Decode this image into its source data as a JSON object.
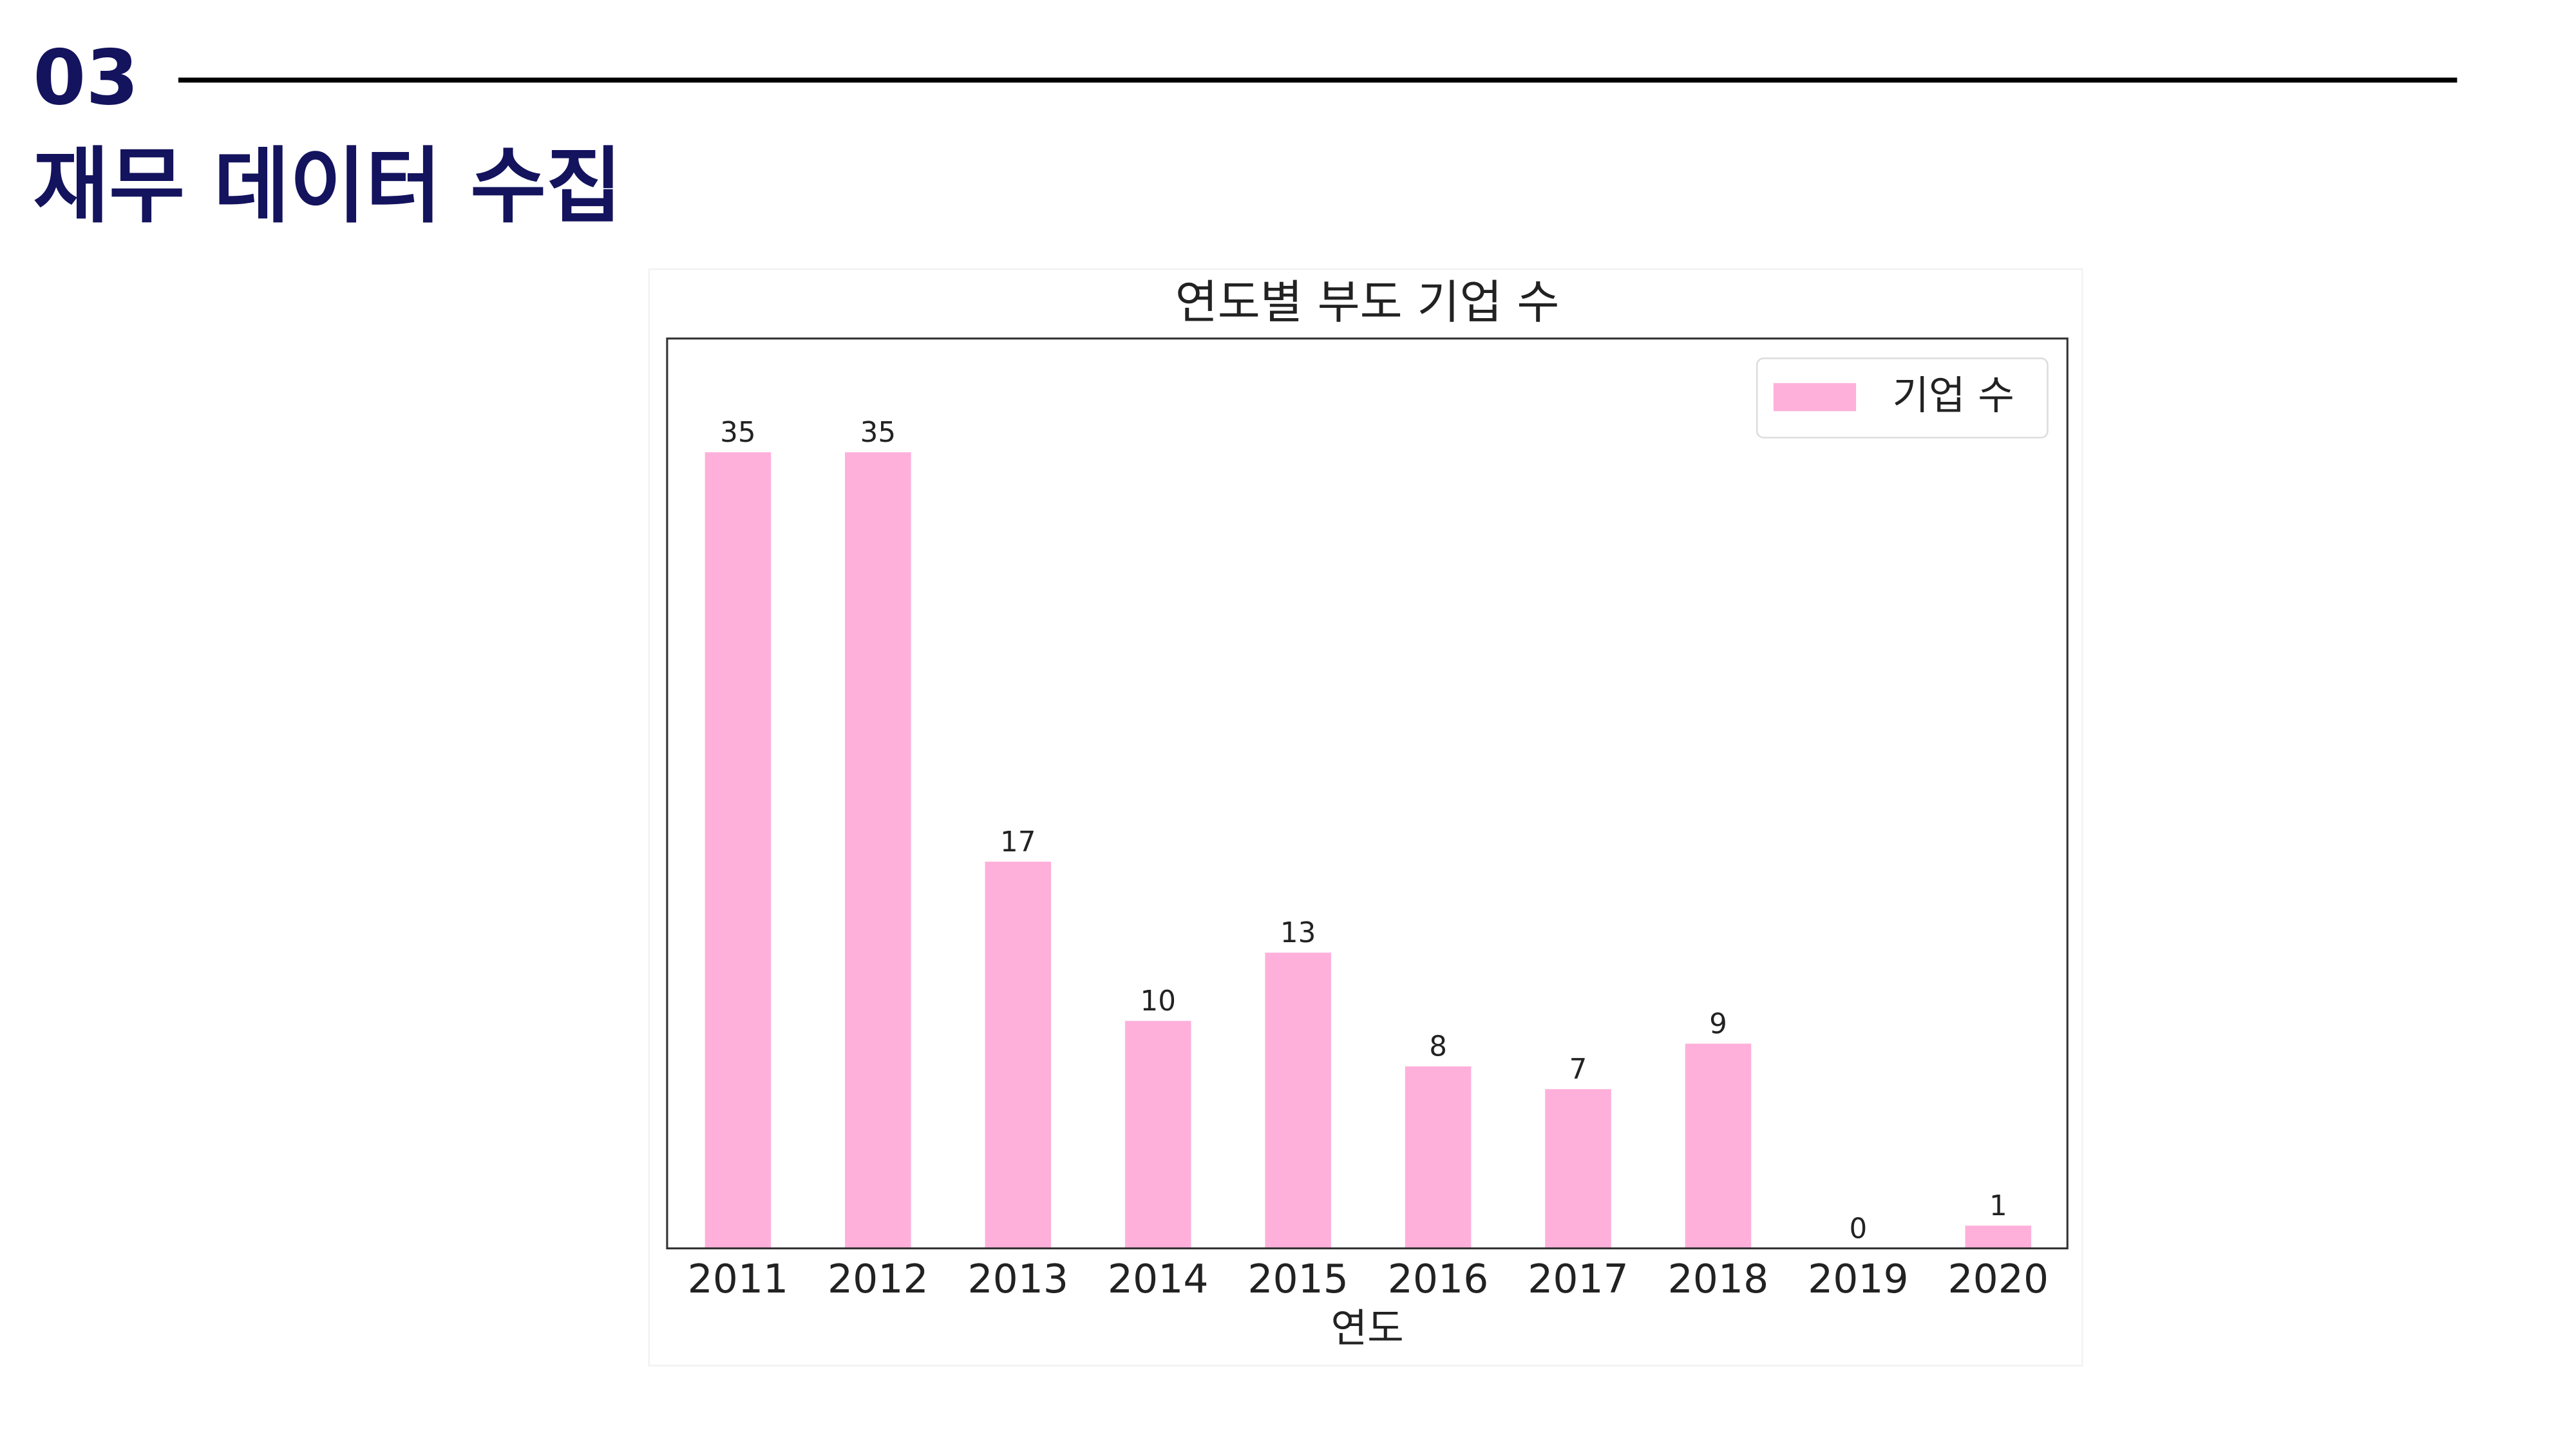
{
  "header": {
    "number": "03",
    "title": "재무 데이터 수집"
  },
  "chart_data": {
    "type": "bar",
    "title": "연도별 부도 기업 수",
    "x_label": "연도",
    "categories": [
      "2011",
      "2012",
      "2013",
      "2014",
      "2015",
      "2016",
      "2017",
      "2018",
      "2019",
      "2020"
    ],
    "series": [
      {
        "name": "기업 수",
        "color": "#ffb0da",
        "values": [
          35,
          35,
          17,
          10,
          13,
          8,
          7,
          9,
          0,
          1
        ]
      }
    ],
    "ylim": [
      0,
      40
    ],
    "legend": "upper-right"
  }
}
